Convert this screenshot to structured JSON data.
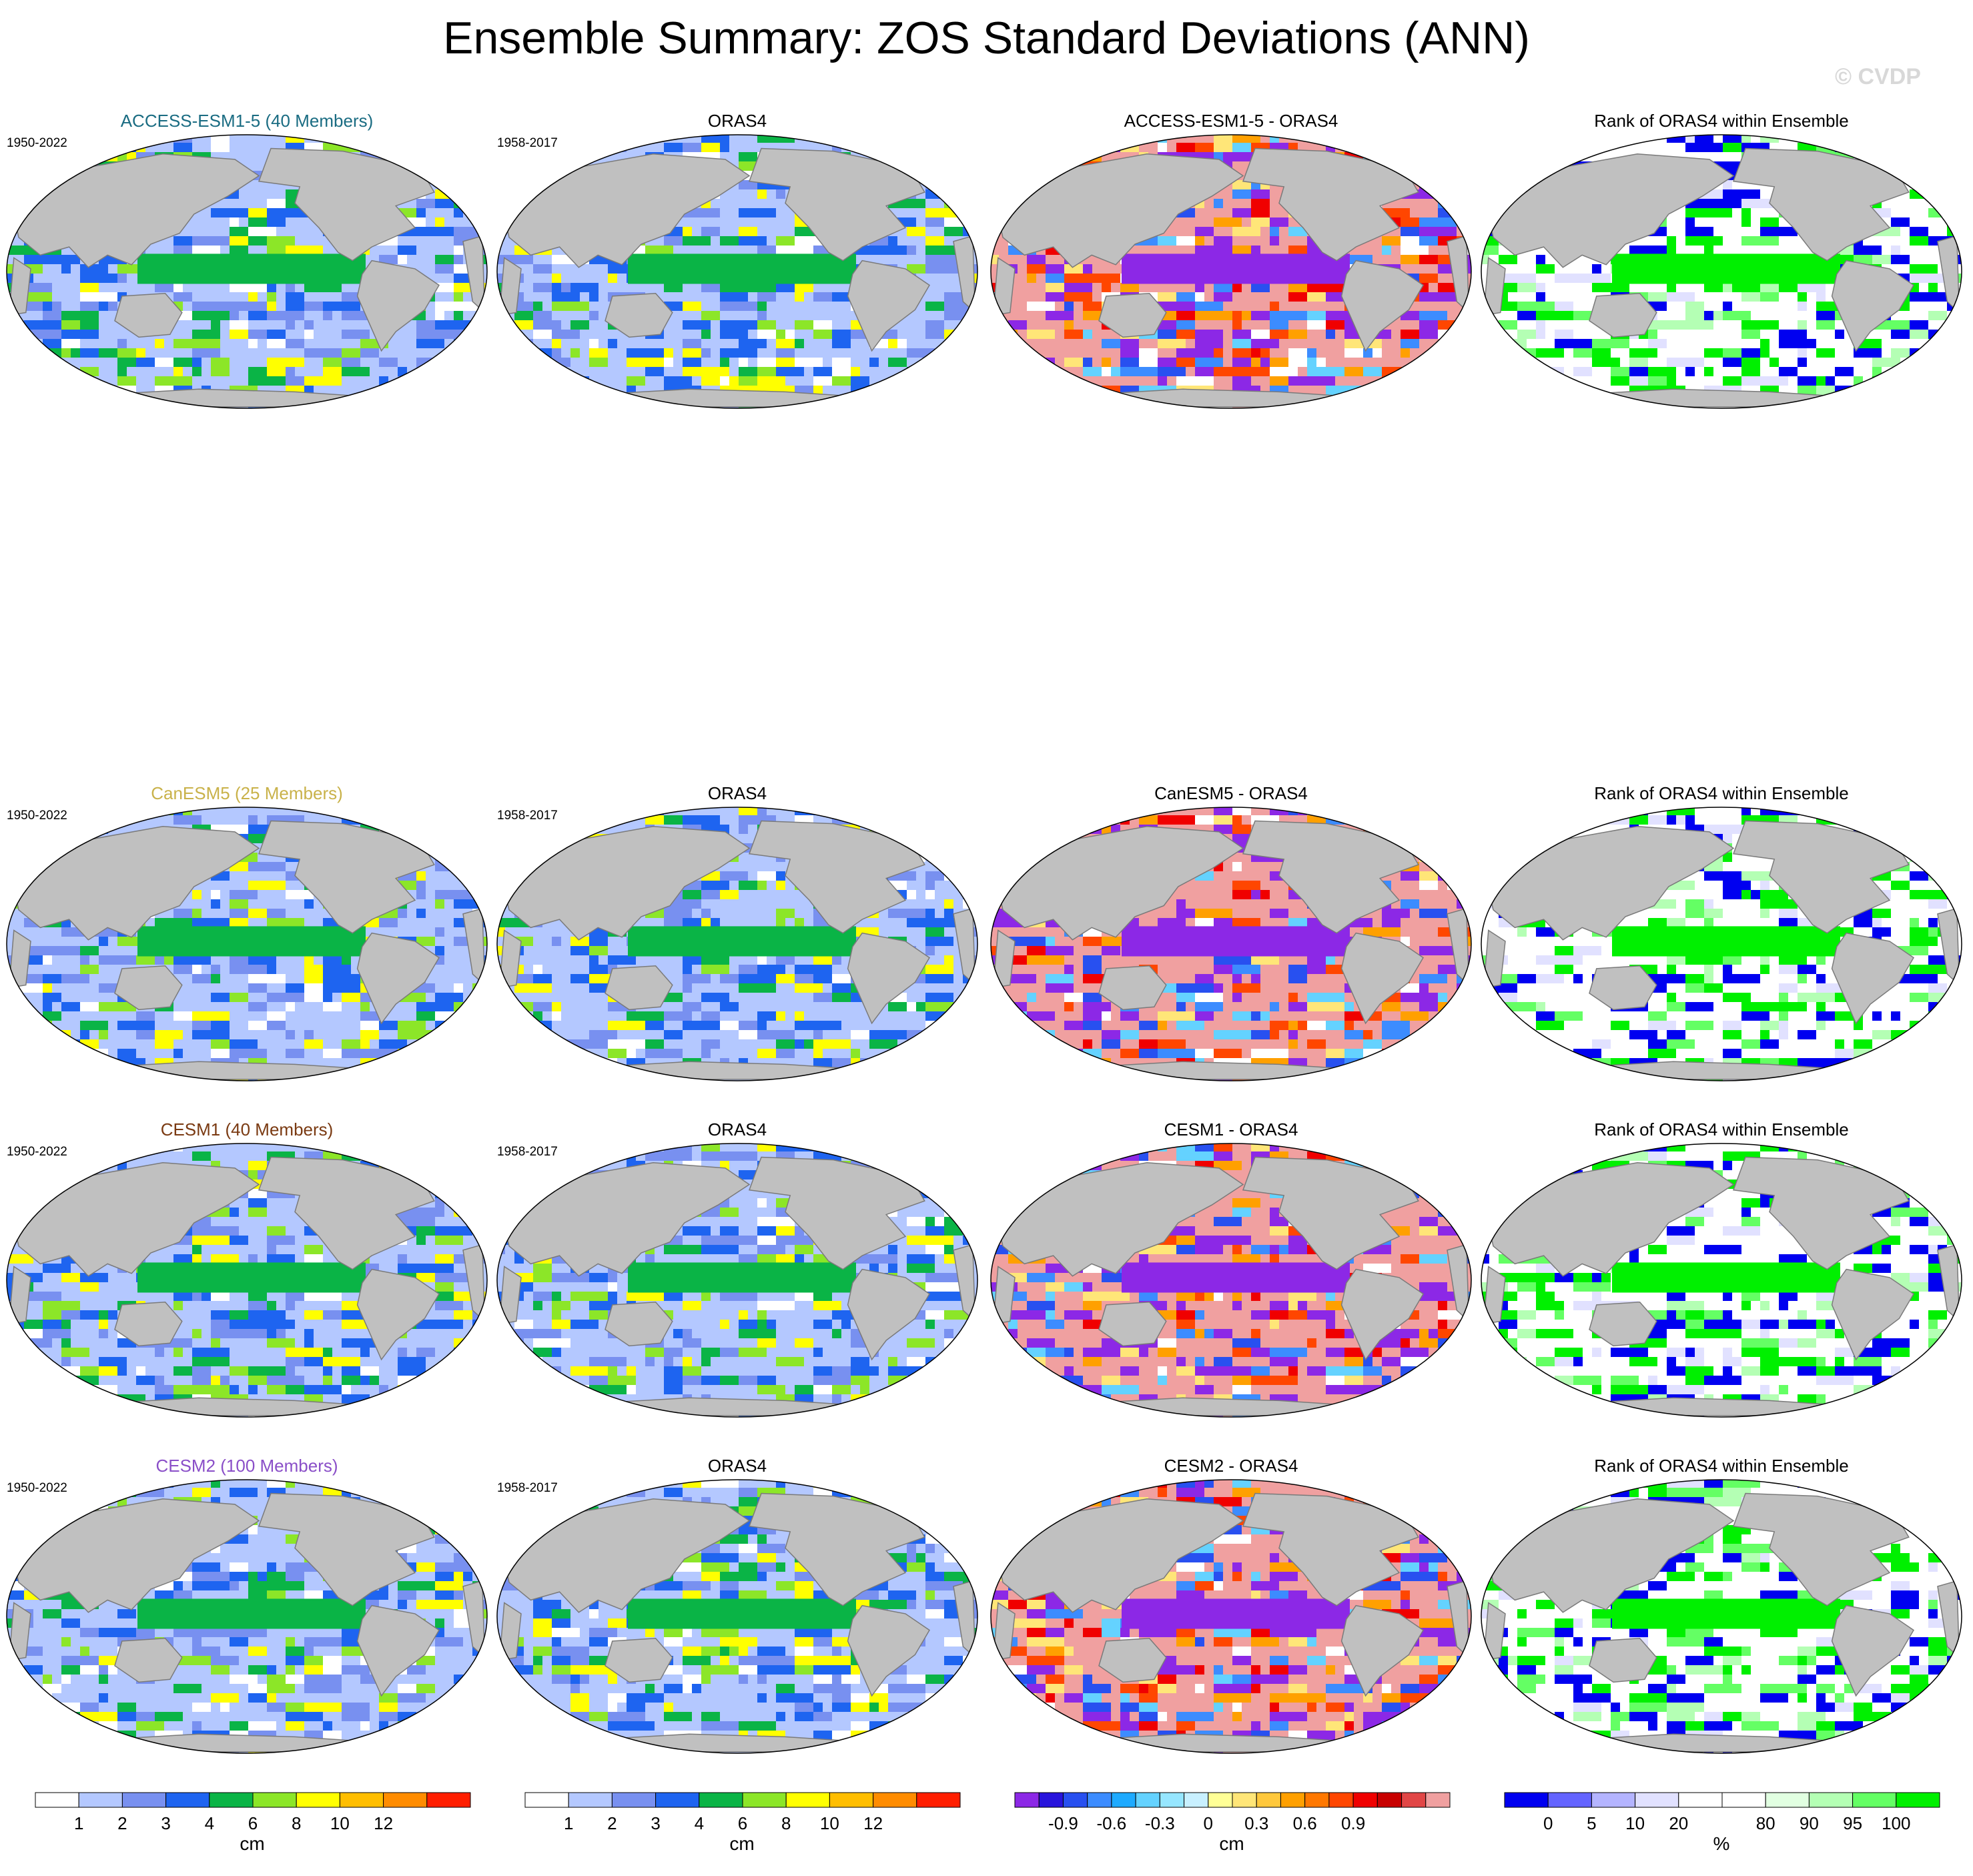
{
  "title": "Ensemble Summary: ZOS Standard Deviations (ANN)",
  "watermark": "© CVDP",
  "colors": {
    "land": "#c0c0c0",
    "coast": "#7a7a7a",
    "plot_background": "#ffffff"
  },
  "rows": [
    {
      "ensemble": {
        "title": "ACCESS-ESM1-5 (40 Members)",
        "title_color": "#1a6c82",
        "years": "1950-2022"
      },
      "observation": {
        "title": "ORAS4",
        "years": "1958-2017"
      },
      "difference": {
        "title": "ACCESS-ESM1-5 - ORAS4"
      },
      "rank": {
        "title": "Rank of ORAS4 within Ensemble"
      }
    },
    {
      "ensemble": {
        "title": "CanESM5 (25 Members)",
        "title_color": "#c9b24a",
        "years": "1950-2022"
      },
      "observation": {
        "title": "ORAS4",
        "years": "1958-2017"
      },
      "difference": {
        "title": "CanESM5 - ORAS4"
      },
      "rank": {
        "title": "Rank of ORAS4 within Ensemble"
      }
    },
    {
      "ensemble": {
        "title": "CESM1 (40 Members)",
        "title_color": "#7a3a12",
        "years": "1950-2022"
      },
      "observation": {
        "title": "ORAS4",
        "years": "1958-2017"
      },
      "difference": {
        "title": "CESM1 - ORAS4"
      },
      "rank": {
        "title": "Rank of ORAS4 within Ensemble"
      }
    },
    {
      "ensemble": {
        "title": "CESM2 (100 Members)",
        "title_color": "#8a4fc8",
        "years": "1950-2022"
      },
      "observation": {
        "title": "ORAS4",
        "years": "1958-2017"
      },
      "difference": {
        "title": "CESM2 - ORAS4"
      },
      "rank": {
        "title": "Rank of ORAS4 within Ensemble"
      }
    }
  ],
  "colorbars": [
    {
      "name": "stddev-ensemble",
      "unit": "cm",
      "colors": [
        "#ffffff",
        "#b4c8ff",
        "#7890f0",
        "#1e64f0",
        "#0ab446",
        "#8ce628",
        "#ffff00",
        "#ffbe00",
        "#ff8c00",
        "#ff1e00"
      ],
      "ticks": [
        "1",
        "2",
        "3",
        "4",
        "6",
        "8",
        "10",
        "12"
      ]
    },
    {
      "name": "stddev-observation",
      "unit": "cm",
      "colors": [
        "#ffffff",
        "#b4c8ff",
        "#7890f0",
        "#1e64f0",
        "#0ab446",
        "#8ce628",
        "#ffff00",
        "#ffbe00",
        "#ff8c00",
        "#ff1e00"
      ],
      "ticks": [
        "1",
        "2",
        "3",
        "4",
        "6",
        "8",
        "10",
        "12"
      ]
    },
    {
      "name": "difference",
      "unit": "cm",
      "colors": [
        "#8c28e6",
        "#2814dc",
        "#2850f0",
        "#3c8cff",
        "#1eaaff",
        "#64d2ff",
        "#96e6ff",
        "#c8f0ff",
        "#ffff96",
        "#ffe678",
        "#ffc83c",
        "#ffa000",
        "#ff7800",
        "#ff4600",
        "#f00000",
        "#c80000",
        "#e14646",
        "#f0a0a0"
      ],
      "ticks": [
        "-0.9",
        "-0.6",
        "-0.3",
        "0",
        "0.3",
        "0.6",
        "0.9"
      ]
    },
    {
      "name": "rank",
      "unit": "%",
      "colors": [
        "#0000f0",
        "#6464ff",
        "#b4b4ff",
        "#e1e1ff",
        "#ffffff",
        "#ffffff",
        "#e1ffe1",
        "#b4ffb4",
        "#64ff64",
        "#00f000"
      ],
      "ticks": [
        "0",
        "5",
        "10",
        "20",
        "80",
        "90",
        "95",
        "100"
      ]
    }
  ]
}
